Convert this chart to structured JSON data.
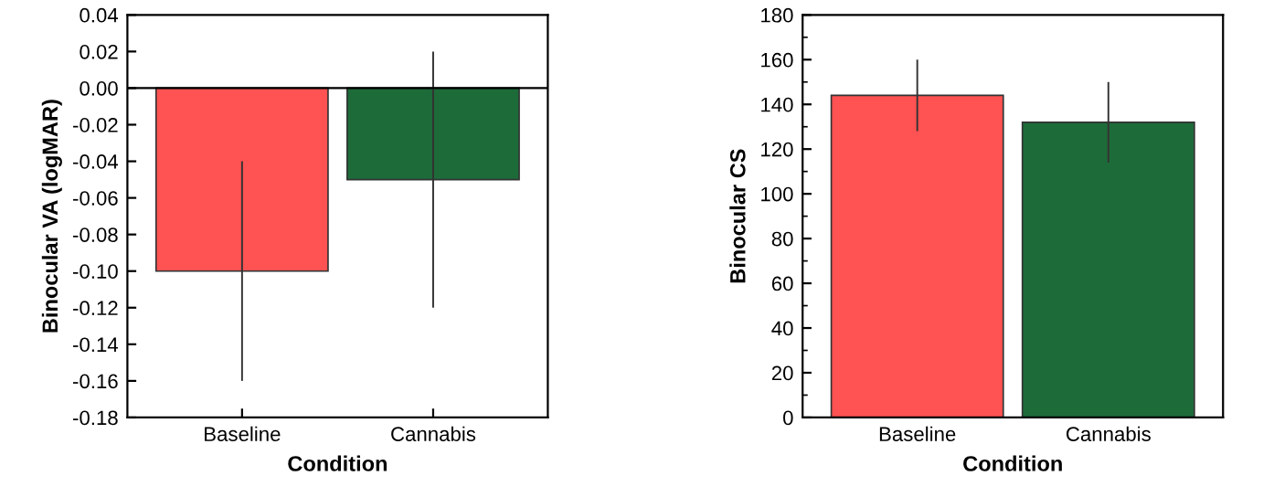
{
  "chart_data": [
    {
      "type": "bar",
      "xlabel": "Condition",
      "ylabel": "Binocular VA (logMAR)",
      "categories": [
        "Baseline",
        "Cannabis"
      ],
      "values": [
        -0.1,
        -0.05
      ],
      "errors": [
        0.06,
        0.07
      ],
      "colors": [
        "#ff5252",
        "#1e6b3a"
      ],
      "ylim": [
        -0.18,
        0.04
      ],
      "yticks": [
        {
          "value": -0.18,
          "label": "-0.18"
        },
        {
          "value": -0.16,
          "label": "-0.16"
        },
        {
          "value": -0.14,
          "label": "-0.14"
        },
        {
          "value": -0.12,
          "label": "-0.12"
        },
        {
          "value": -0.1,
          "label": "-0.10"
        },
        {
          "value": -0.08,
          "label": "-0.08"
        },
        {
          "value": -0.06,
          "label": "-0.06"
        },
        {
          "value": -0.04,
          "label": "-0.04"
        },
        {
          "value": -0.02,
          "label": "-0.02"
        },
        {
          "value": 0,
          "label": "0.00"
        },
        {
          "value": 0.02,
          "label": "0.02"
        },
        {
          "value": 0.04,
          "label": "0.04"
        }
      ],
      "ref_lines": [
        {
          "axis": "y",
          "value": 0,
          "color": "#000000"
        }
      ],
      "grid": false,
      "legend": false
    },
    {
      "type": "bar",
      "xlabel": "Condition",
      "ylabel": "Binocular CS",
      "categories": [
        "Baseline",
        "Cannabis"
      ],
      "values": [
        144,
        132
      ],
      "errors": [
        16,
        18
      ],
      "colors": [
        "#ff5252",
        "#1e6b3a"
      ],
      "ylim": [
        0,
        180
      ],
      "yticks": [
        0,
        20,
        40,
        60,
        80,
        100,
        120,
        140,
        160,
        180
      ],
      "grid": false,
      "legend": false
    }
  ]
}
